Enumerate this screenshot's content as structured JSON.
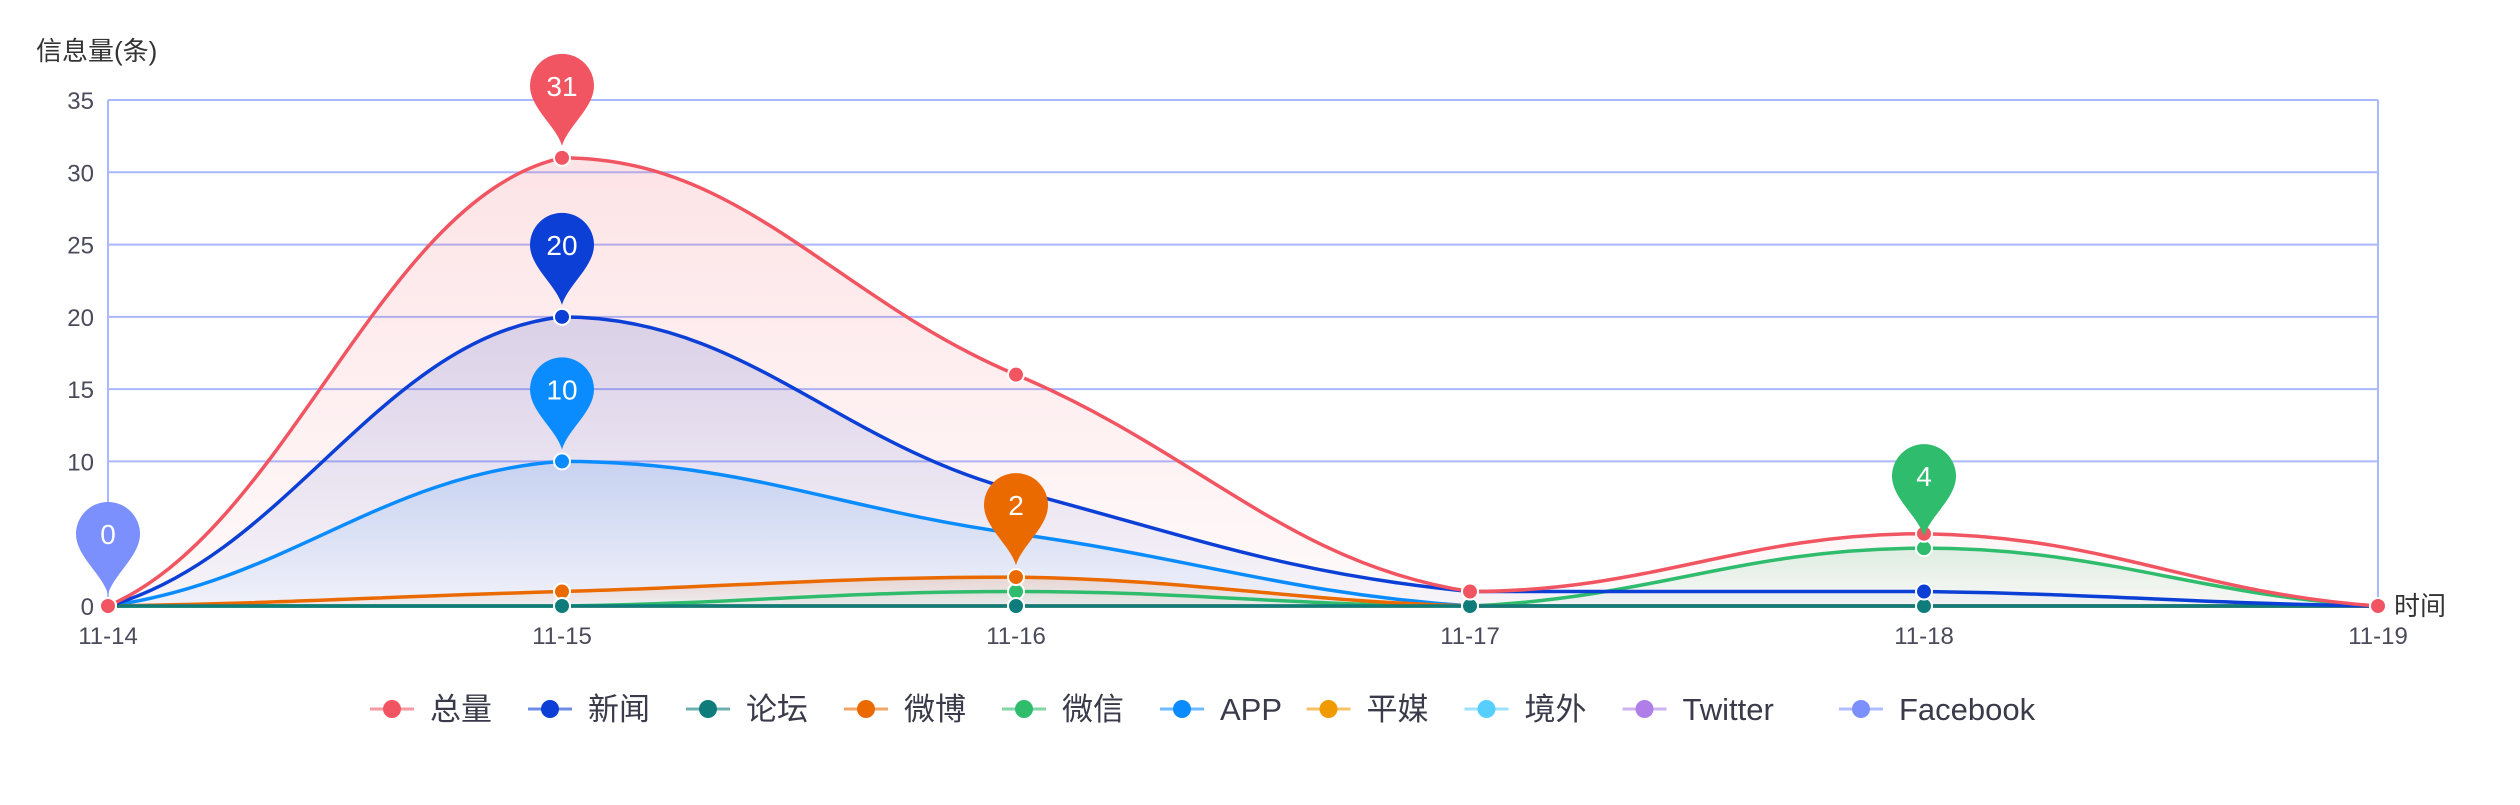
{
  "chart_data": {
    "type": "line",
    "smooth": true,
    "area_fill": true,
    "ylabel": "信息量(条)",
    "xlabel": "时间",
    "categories": [
      "11-14",
      "11-15",
      "11-16",
      "11-17",
      "11-18",
      "11-19"
    ],
    "ylim": [
      0,
      35
    ],
    "yticks": [
      0,
      10,
      15,
      20,
      25,
      30,
      35
    ],
    "grid": true,
    "legend_position": "bottom",
    "series": [
      {
        "name": "总量",
        "color": "#f25562",
        "values": [
          0,
          31,
          16,
          1,
          5,
          0
        ],
        "max_label": "31"
      },
      {
        "name": "新闻",
        "color": "#0b3fd6",
        "values": [
          0,
          20,
          8,
          1,
          1,
          0
        ],
        "max_label": "20"
      },
      {
        "name": "论坛",
        "color": "#0e7c7b",
        "values": [
          0,
          0,
          0,
          0,
          0,
          0
        ]
      },
      {
        "name": "微博",
        "color": "#ea6a00",
        "values": [
          0,
          1,
          2,
          0,
          0,
          0
        ],
        "max_label": "2"
      },
      {
        "name": "微信",
        "color": "#2fbc6d",
        "values": [
          0,
          0,
          1,
          0,
          4,
          0
        ],
        "max_label": "4"
      },
      {
        "name": "APP",
        "color": "#0a8cff",
        "values": [
          0,
          10,
          5,
          0,
          0,
          0
        ],
        "max_label": "10"
      },
      {
        "name": "平媒",
        "color": "#f09a00",
        "values": [
          0,
          0,
          0,
          0,
          0,
          0
        ]
      },
      {
        "name": "境外",
        "color": "#56cfff",
        "values": [
          0,
          0,
          0,
          0,
          0,
          0
        ]
      },
      {
        "name": "Twitter",
        "color": "#b07ee8",
        "values": [
          0,
          0,
          0,
          0,
          0,
          0
        ]
      },
      {
        "name": "Facebook",
        "color": "#7b8ffd",
        "values": [
          0,
          0,
          0,
          0,
          0,
          0
        ],
        "max_label": "0"
      }
    ],
    "colors": {
      "grid": "#aab8ff",
      "axis_text": "#4a4a5a"
    }
  }
}
